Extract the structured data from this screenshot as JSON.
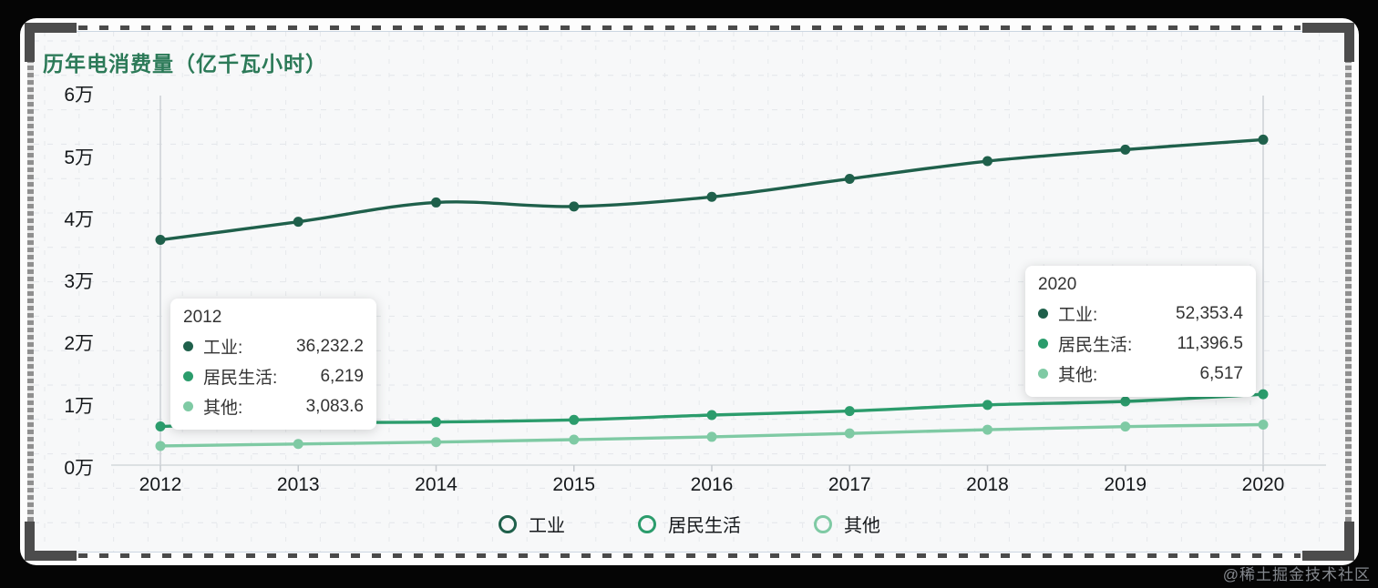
{
  "frame": {
    "watermark": "@稀土掘金技术社区"
  },
  "chart_data": {
    "type": "line",
    "title": "历年电消费量（亿千瓦小时）",
    "x": [
      2012,
      2013,
      2014,
      2015,
      2016,
      2017,
      2018,
      2019,
      2020
    ],
    "series": [
      {
        "key": "industry",
        "name": "工业",
        "color": "#1f604b",
        "values": [
          36232.2,
          39143,
          42250,
          41600,
          43150,
          46050,
          48900,
          50750,
          52353.4
        ]
      },
      {
        "key": "residential",
        "name": "居民生活",
        "color": "#2b9c6c",
        "values": [
          6219,
          6793,
          6928,
          7276,
          8054,
          8695,
          9685,
          10250,
          11396.5
        ]
      },
      {
        "key": "other",
        "name": "其他",
        "color": "#7fcaa4",
        "values": [
          3083.6,
          3400,
          3700,
          4100,
          4550,
          5100,
          5700,
          6200,
          6517
        ]
      }
    ],
    "ylim": [
      0,
      60000
    ],
    "ytick_labels": [
      "0万",
      "1万",
      "2万",
      "3万",
      "4万",
      "5万",
      "6万"
    ],
    "xlabel": "",
    "ylabel": "",
    "grid": "dotted",
    "legend_position": "bottom",
    "highlighted_years": [
      2012,
      2020
    ],
    "tooltips": [
      {
        "year": "2012",
        "anchor_year": 2012,
        "rows": [
          {
            "label": "工业:",
            "value": "36,232.2"
          },
          {
            "label": "居民生活:",
            "value": "6,219"
          },
          {
            "label": "其他:",
            "value": "3,083.6"
          }
        ]
      },
      {
        "year": "2020",
        "anchor_year": 2020,
        "rows": [
          {
            "label": "工业:",
            "value": "52,353.4"
          },
          {
            "label": "居民生活:",
            "value": "11,396.5"
          },
          {
            "label": "其他:",
            "value": "6,517"
          }
        ]
      }
    ]
  }
}
